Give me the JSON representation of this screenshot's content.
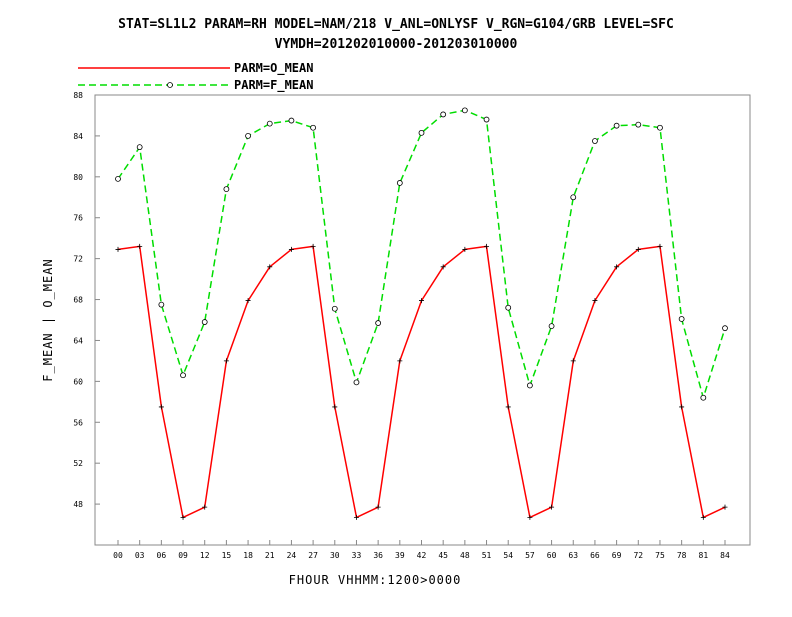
{
  "chart_data": {
    "type": "line",
    "title": "STAT=SL1L2 PARAM=RH MODEL=NAM/218 V_ANL=ONLYSF V_RGN=G104/GRB LEVEL=SFC",
    "subtitle": "VYMDH=201202010000-201203010000",
    "xlabel": "FHOUR VHHMM:1200>0000",
    "ylabel": "F_MEAN | O_MEAN",
    "categories": [
      "00",
      "03",
      "06",
      "09",
      "12",
      "15",
      "18",
      "21",
      "24",
      "27",
      "30",
      "33",
      "36",
      "39",
      "42",
      "45",
      "48",
      "51",
      "54",
      "57",
      "60",
      "63",
      "66",
      "69",
      "72",
      "75",
      "78",
      "81",
      "84"
    ],
    "ylim": [
      44,
      88
    ],
    "yticks": [
      "48",
      "52",
      "56",
      "60",
      "64",
      "68",
      "72",
      "76",
      "80",
      "84",
      "88"
    ],
    "grid": false,
    "legend_position": "top-left",
    "series": [
      {
        "name": "PARM=O_MEAN",
        "color": "#ff0000",
        "dash": "solid",
        "marker": "plus",
        "values": [
          72.9,
          73.2,
          57.5,
          46.7,
          47.7,
          62.0,
          67.9,
          71.2,
          72.9,
          73.2,
          57.5,
          46.7,
          47.7,
          62.0,
          67.9,
          71.2,
          72.9,
          73.2,
          57.5,
          46.7,
          47.7,
          62.0,
          67.9,
          71.2,
          72.9,
          73.2,
          57.5,
          46.7,
          47.7
        ]
      },
      {
        "name": "PARM=F_MEAN",
        "color": "#00dd00",
        "dash": "dashed",
        "marker": "circle",
        "values": [
          79.8,
          82.9,
          67.5,
          60.6,
          65.8,
          78.8,
          84.0,
          85.2,
          85.5,
          84.8,
          67.1,
          59.9,
          65.7,
          79.4,
          84.3,
          86.1,
          86.5,
          85.6,
          67.2,
          59.6,
          65.4,
          78.0,
          83.5,
          85.0,
          85.1,
          84.8,
          66.1,
          58.4,
          65.2
        ]
      }
    ]
  }
}
